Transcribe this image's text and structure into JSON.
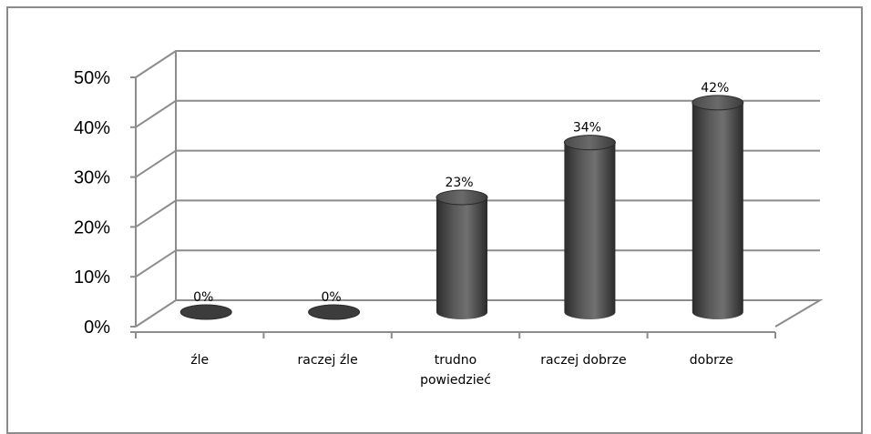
{
  "chart_data": {
    "type": "bar",
    "variant": "3d-cylinder",
    "categories": [
      [
        "źle"
      ],
      [
        "raczej źle"
      ],
      [
        "trudno",
        "powiedzieć"
      ],
      [
        "raczej dobrze"
      ],
      [
        "dobrze"
      ]
    ],
    "values": [
      0,
      0,
      23,
      34,
      42
    ],
    "data_labels": [
      "0%",
      "0%",
      "23%",
      "34%",
      "42%"
    ],
    "y_ticks": [
      "0%",
      "10%",
      "20%",
      "30%",
      "40%",
      "50%"
    ],
    "ylim": [
      0,
      50
    ],
    "grid": true,
    "legend": "none",
    "colors": {
      "bar_dark": "#3c3c3c",
      "bar_mid": "#6f6f6f",
      "bar_light": "#8a8a8a",
      "grid": "#8c8c8c",
      "frame": "#8c8c8c"
    }
  }
}
